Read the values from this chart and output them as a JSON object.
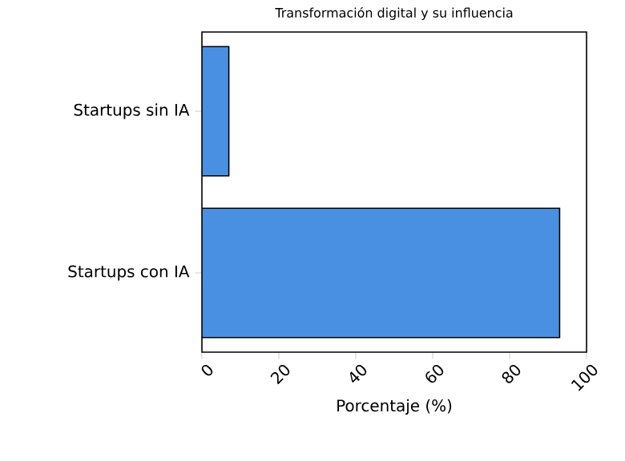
{
  "chart_data": {
    "type": "bar",
    "orientation": "horizontal",
    "title": "Transformación digital y su influencia",
    "xlabel": "Porcentaje (%)",
    "categories": [
      "Startups sin IA",
      "Startups con IA"
    ],
    "values": [
      7,
      93
    ],
    "color": "#4a90e2",
    "xlim": [
      0,
      100
    ],
    "xticks": [
      0,
      20,
      40,
      60,
      80,
      100
    ],
    "grid": false
  }
}
